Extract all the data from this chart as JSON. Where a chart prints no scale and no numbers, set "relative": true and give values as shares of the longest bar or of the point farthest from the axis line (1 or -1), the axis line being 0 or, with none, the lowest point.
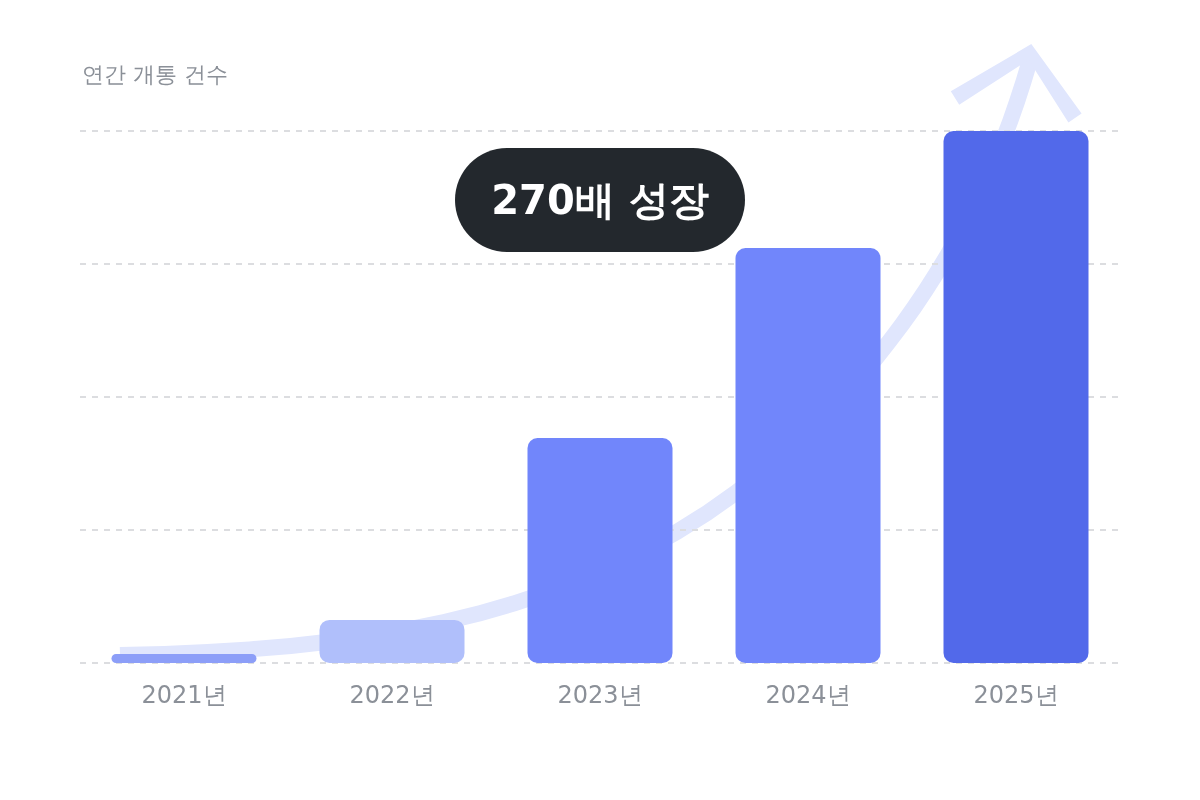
{
  "chart_data": {
    "type": "bar",
    "title": "연간 개통 건수",
    "categories": [
      "2021년",
      "2022년",
      "2023년",
      "2024년",
      "2025년"
    ],
    "values": [
      0.017,
      0.081,
      0.423,
      0.78,
      1
    ],
    "colors": [
      "#8c9ef8",
      "#b0bffb",
      "#7186fb",
      "#7186fb",
      "#5269ea"
    ],
    "relative": true,
    "grid": "y",
    "annotations": [
      "270배 성장"
    ]
  }
}
